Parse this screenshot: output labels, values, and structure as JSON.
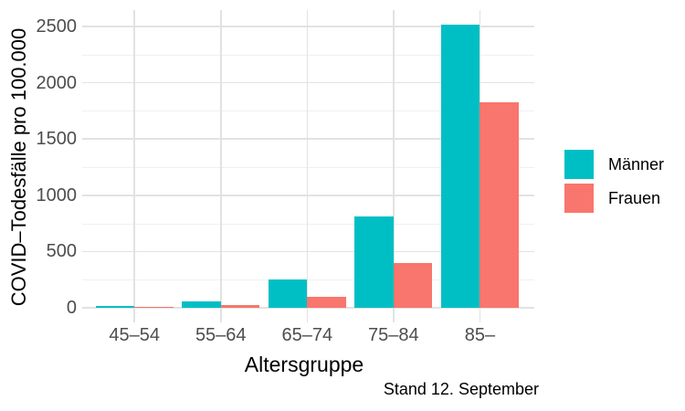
{
  "chart_data": {
    "type": "bar",
    "title": "",
    "xlabel": "Altersgruppe",
    "ylabel": "COVID–Todesfälle pro 100.000",
    "caption": "Stand 12. September",
    "categories": [
      "45–54",
      "55–64",
      "65–74",
      "75–84",
      "85–"
    ],
    "series": [
      {
        "name": "Männer",
        "color": "#00BFC4",
        "values": [
          13,
          60,
          250,
          810,
          2515
        ]
      },
      {
        "name": "Frauen",
        "color": "#F8766D",
        "values": [
          5,
          25,
          100,
          395,
          1830
        ]
      }
    ],
    "y_ticks": [
      0,
      500,
      1000,
      1500,
      2000,
      2500
    ],
    "y_minor_ticks": [
      250,
      750,
      1250,
      1750,
      2250
    ],
    "ylim": [
      -130,
      2646
    ],
    "grid": true,
    "legend_position": "right",
    "colors": {
      "grid_major": "#E2E2E2",
      "grid_minor": "#F0F0F0",
      "tick_text": "#4D4D4D",
      "title_text": "#000000",
      "background": "#FFFFFF"
    }
  }
}
